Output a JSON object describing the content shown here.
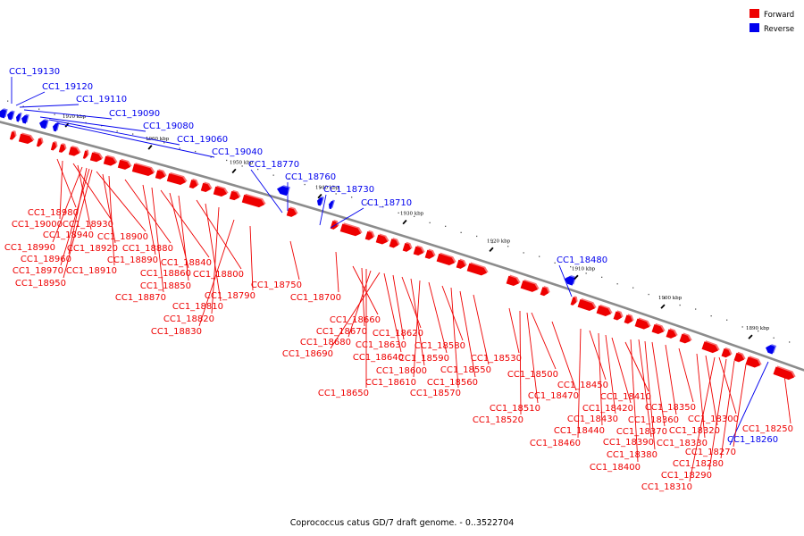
{
  "colors": {
    "forward": "#ee0000",
    "reverse": "#0000ee",
    "backbone": "#8c8c8c",
    "background": "#ffffff"
  },
  "legend": {
    "forward_label": "Forward",
    "reverse_label": "Reverse"
  },
  "caption": "Coprococcus catus GD/7 draft genome. - 0..3522704",
  "ticks": [
    {
      "text": "1970 kbp"
    },
    {
      "text": "1960 kbp"
    },
    {
      "text": "1950 kbp"
    },
    {
      "text": "1940 kbp"
    },
    {
      "text": "1930 kbp"
    },
    {
      "text": "1920 kbp"
    },
    {
      "text": "1910 kbp"
    },
    {
      "text": "1900 kbp"
    },
    {
      "text": "1890 kbp"
    }
  ],
  "labels": [
    {
      "text": "CC1_19130",
      "strand": "reverse"
    },
    {
      "text": "CC1_19120",
      "strand": "reverse"
    },
    {
      "text": "CC1_19110",
      "strand": "reverse"
    },
    {
      "text": "CC1_19090",
      "strand": "reverse"
    },
    {
      "text": "CC1_19080",
      "strand": "reverse"
    },
    {
      "text": "CC1_19060",
      "strand": "reverse"
    },
    {
      "text": "CC1_19040",
      "strand": "reverse"
    },
    {
      "text": "CC1_18770",
      "strand": "reverse"
    },
    {
      "text": "CC1_18760",
      "strand": "reverse"
    },
    {
      "text": "CC1_18730",
      "strand": "reverse"
    },
    {
      "text": "CC1_18710",
      "strand": "reverse"
    },
    {
      "text": "CC1_18480",
      "strand": "reverse"
    },
    {
      "text": "CC1_18260",
      "strand": "reverse"
    },
    {
      "text": "CC1_18980",
      "strand": "forward"
    },
    {
      "text": "CC1_19000",
      "strand": "forward"
    },
    {
      "text": "CC1_18930",
      "strand": "forward"
    },
    {
      "text": "CC1_18940",
      "strand": "forward"
    },
    {
      "text": "CC1_18900",
      "strand": "forward"
    },
    {
      "text": "CC1_18990",
      "strand": "forward"
    },
    {
      "text": "CC1_18920",
      "strand": "forward"
    },
    {
      "text": "CC1_18880",
      "strand": "forward"
    },
    {
      "text": "CC1_18960",
      "strand": "forward"
    },
    {
      "text": "CC1_18890",
      "strand": "forward"
    },
    {
      "text": "CC1_18840",
      "strand": "forward"
    },
    {
      "text": "CC1_18970",
      "strand": "forward"
    },
    {
      "text": "CC1_18910",
      "strand": "forward"
    },
    {
      "text": "CC1_18860",
      "strand": "forward"
    },
    {
      "text": "CC1_18800",
      "strand": "forward"
    },
    {
      "text": "CC1_18950",
      "strand": "forward"
    },
    {
      "text": "CC1_18850",
      "strand": "forward"
    },
    {
      "text": "CC1_18750",
      "strand": "forward"
    },
    {
      "text": "CC1_18870",
      "strand": "forward"
    },
    {
      "text": "CC1_18790",
      "strand": "forward"
    },
    {
      "text": "CC1_18700",
      "strand": "forward"
    },
    {
      "text": "CC1_18810",
      "strand": "forward"
    },
    {
      "text": "CC1_18820",
      "strand": "forward"
    },
    {
      "text": "CC1_18830",
      "strand": "forward"
    },
    {
      "text": "CC1_18660",
      "strand": "forward"
    },
    {
      "text": "CC1_18670",
      "strand": "forward"
    },
    {
      "text": "CC1_18620",
      "strand": "forward"
    },
    {
      "text": "CC1_18680",
      "strand": "forward"
    },
    {
      "text": "CC1_18630",
      "strand": "forward"
    },
    {
      "text": "CC1_18580",
      "strand": "forward"
    },
    {
      "text": "CC1_18690",
      "strand": "forward"
    },
    {
      "text": "CC1_18640",
      "strand": "forward"
    },
    {
      "text": "CC1_18590",
      "strand": "forward"
    },
    {
      "text": "CC1_18530",
      "strand": "forward"
    },
    {
      "text": "CC1_18600",
      "strand": "forward"
    },
    {
      "text": "CC1_18550",
      "strand": "forward"
    },
    {
      "text": "CC1_18500",
      "strand": "forward"
    },
    {
      "text": "CC1_18610",
      "strand": "forward"
    },
    {
      "text": "CC1_18560",
      "strand": "forward"
    },
    {
      "text": "CC1_18650",
      "strand": "forward"
    },
    {
      "text": "CC1_18570",
      "strand": "forward"
    },
    {
      "text": "CC1_18450",
      "strand": "forward"
    },
    {
      "text": "CC1_18470",
      "strand": "forward"
    },
    {
      "text": "CC1_18410",
      "strand": "forward"
    },
    {
      "text": "CC1_18510",
      "strand": "forward"
    },
    {
      "text": "CC1_18420",
      "strand": "forward"
    },
    {
      "text": "CC1_18350",
      "strand": "forward"
    },
    {
      "text": "CC1_18520",
      "strand": "forward"
    },
    {
      "text": "CC1_18430",
      "strand": "forward"
    },
    {
      "text": "CC1_18360",
      "strand": "forward"
    },
    {
      "text": "CC1_18300",
      "strand": "forward"
    },
    {
      "text": "CC1_18440",
      "strand": "forward"
    },
    {
      "text": "CC1_18370",
      "strand": "forward"
    },
    {
      "text": "CC1_18320",
      "strand": "forward"
    },
    {
      "text": "CC1_18250",
      "strand": "forward"
    },
    {
      "text": "CC1_18460",
      "strand": "forward"
    },
    {
      "text": "CC1_18390",
      "strand": "forward"
    },
    {
      "text": "CC1_18330",
      "strand": "forward"
    },
    {
      "text": "CC1_18380",
      "strand": "forward"
    },
    {
      "text": "CC1_18270",
      "strand": "forward"
    },
    {
      "text": "CC1_18400",
      "strand": "forward"
    },
    {
      "text": "CC1_18280",
      "strand": "forward"
    },
    {
      "text": "CC1_18290",
      "strand": "forward"
    },
    {
      "text": "CC1_18310",
      "strand": "forward"
    }
  ]
}
